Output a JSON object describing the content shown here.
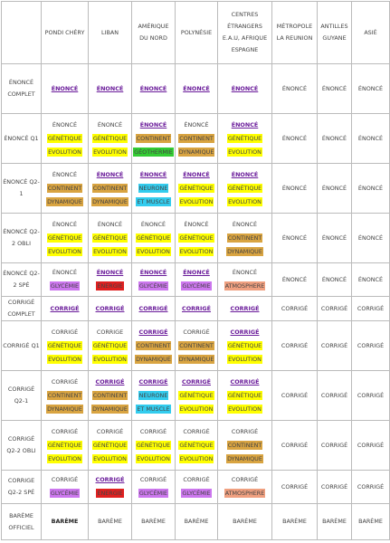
{
  "table": {
    "header": [
      "PONDI CHÉRY",
      "LIBAN",
      "AMÉRIQUE DU NORD",
      "POLYNÉSIE",
      "CENTRES ÉTRANGERS E.A.U, AFRIQUE ESPAGNE",
      "MÉTROPOLE LA REUNION",
      "ANTILLES GUYANE",
      "ASIÉ"
    ],
    "rows": [
      {
        "label": "ÉNONCÉ COMPLET",
        "cells": [
          [
            {
              "text": "ÉNONCÉ",
              "link": true
            }
          ],
          [
            {
              "text": "ÉNONCÉ",
              "link": true
            }
          ],
          [
            {
              "text": "ÉNONCÉ",
              "link": true
            }
          ],
          [
            {
              "text": "ÉNONCÉ",
              "link": true
            }
          ],
          [
            {
              "text": "ÉNONCÉ",
              "link": true
            }
          ],
          [
            {
              "text": "ÉNONCÉ"
            }
          ],
          [
            {
              "text": "ÉNONCÉ"
            }
          ],
          [
            {
              "text": "ÉNONCÉ"
            }
          ]
        ]
      },
      {
        "label": "ÉNONCÉ Q1",
        "cells": [
          [
            {
              "text": "ÉNONCÉ"
            },
            {
              "text": "GÉNÉTIQUE",
              "bg": "#ffff00"
            },
            {
              "text": "EVOLUTION",
              "bg": "#ffff00"
            }
          ],
          [
            {
              "text": "ÉNONCÉ"
            },
            {
              "text": "GÉNÉTIQUE",
              "bg": "#ffff00"
            },
            {
              "text": "EVOLUTION",
              "bg": "#ffff00"
            }
          ],
          [
            {
              "text": "ÉNONCÉ",
              "link": true
            },
            {
              "text": "CONTINENT",
              "bg": "#d9a441"
            },
            {
              "text": "GÉOTHERMIE",
              "bg": "#33cc33"
            }
          ],
          [
            {
              "text": "ÉNONCÉ"
            },
            {
              "text": "CONTINENT",
              "bg": "#d9a441"
            },
            {
              "text": "DYNAMIQUE",
              "bg": "#d9a441"
            }
          ],
          [
            {
              "text": "ÉNONCÉ",
              "link": true
            },
            {
              "text": "GÉNÉTIQUE",
              "bg": "#ffff00"
            },
            {
              "text": "EVOLUTION",
              "bg": "#ffff00"
            }
          ],
          [
            {
              "text": "ÉNONCÉ"
            }
          ],
          [
            {
              "text": "ÉNONCÉ"
            }
          ],
          [
            {
              "text": "ÉNONCÉ"
            }
          ]
        ]
      },
      {
        "label": "ÉNONCÉ Q2-1",
        "cells": [
          [
            {
              "text": "ÉNONCÉ"
            },
            {
              "text": "CONTINENT",
              "bg": "#d9a441"
            },
            {
              "text": "DYNAMIQUE",
              "bg": "#d9a441"
            }
          ],
          [
            {
              "text": "ÉNONCÉ",
              "link": true
            },
            {
              "text": "CONTINENT",
              "bg": "#d9a441"
            },
            {
              "text": "DYNAMIQUE",
              "bg": "#d9a441"
            }
          ],
          [
            {
              "text": "ÉNONCÉ",
              "link": true
            },
            {
              "text": "NEURONE",
              "bg": "#33ccee"
            },
            {
              "text": "ET MUSCLE",
              "bg": "#33ccee"
            }
          ],
          [
            {
              "text": "ÉNONCÉ",
              "link": true
            },
            {
              "text": "GÉNÉTIQUE",
              "bg": "#ffff00"
            },
            {
              "text": "EVOLUTION",
              "bg": "#ffff00"
            }
          ],
          [
            {
              "text": "ÉNONCÉ",
              "link": true
            },
            {
              "text": "GÉNÉTIQUE",
              "bg": "#ffff00"
            },
            {
              "text": "EVOLUTION",
              "bg": "#ffff00"
            }
          ],
          [
            {
              "text": "ÉNONCÉ"
            }
          ],
          [
            {
              "text": "ÉNONCÉ"
            }
          ],
          [
            {
              "text": "ÉNONCÉ"
            }
          ]
        ]
      },
      {
        "label": "ÉNONCÉ Q2-2 OBLI",
        "cells": [
          [
            {
              "text": "ÉNONCÉ"
            },
            {
              "text": "GÉNÉTIQUE",
              "bg": "#ffff00"
            },
            {
              "text": "EVOLUTION",
              "bg": "#ffff00"
            }
          ],
          [
            {
              "text": "ÉNONCÉ"
            },
            {
              "text": "GÉNÉTIQUE",
              "bg": "#ffff00"
            },
            {
              "text": "EVOLUTION",
              "bg": "#ffff00"
            }
          ],
          [
            {
              "text": "ÉNONCÉ"
            },
            {
              "text": "GÉNÉTIQUE",
              "bg": "#ffff00"
            },
            {
              "text": "EVOLUTION",
              "bg": "#ffff00"
            }
          ],
          [
            {
              "text": "ÉNONCÉ"
            },
            {
              "text": "GÉNÉTIQUE",
              "bg": "#ffff00"
            },
            {
              "text": "EVOLUTION",
              "bg": "#ffff00"
            }
          ],
          [
            {
              "text": "ÉNONCÉ"
            },
            {
              "text": "CONTINENT",
              "bg": "#d9a441"
            },
            {
              "text": "DYNAMIQUE",
              "bg": "#d9a441"
            }
          ],
          [
            {
              "text": "ÉNONCÉ"
            }
          ],
          [
            {
              "text": "ÉNONCÉ"
            }
          ],
          [
            {
              "text": "ÉNONCÉ"
            }
          ]
        ]
      },
      {
        "label": "ÉNONCÉ Q2-2 SPÉ",
        "cells": [
          [
            {
              "text": "ÉNONCÉ"
            },
            {
              "text": "GLYCÉMIE",
              "bg": "#cc77ee"
            }
          ],
          [
            {
              "text": "ÉNONCÉ",
              "link": true
            },
            {
              "text": "ÉNERGIE",
              "bg": "#e02020"
            }
          ],
          [
            {
              "text": "ÉNONCÉ",
              "link": true
            },
            {
              "text": "GLYCÉMIE",
              "bg": "#cc77ee"
            }
          ],
          [
            {
              "text": "ÉNONCÉ",
              "link": true
            },
            {
              "text": "GLYCÉMIE",
              "bg": "#cc77ee"
            }
          ],
          [
            {
              "text": "ÉNONCÉ"
            },
            {
              "text": "ATMOSPHERE",
              "bg": "#f0a080"
            }
          ],
          [
            {
              "text": "ÉNONCÉ"
            }
          ],
          [
            {
              "text": "ÉNONCÉ"
            }
          ],
          [
            {
              "text": "ÉNONCÉ"
            }
          ]
        ]
      },
      {
        "label": "CORRIGÉ COMPLET",
        "cells": [
          [
            {
              "text": "CORRIGÉ",
              "link": true
            }
          ],
          [
            {
              "text": "CORRIGÉ",
              "link": true
            }
          ],
          [
            {
              "text": "CORRIGÉ",
              "link": true
            }
          ],
          [
            {
              "text": "CORRIGÉ",
              "link": true
            }
          ],
          [
            {
              "text": "CORRIGÉ",
              "link": true
            }
          ],
          [
            {
              "text": "CORRIGÉ"
            }
          ],
          [
            {
              "text": "CORRIGÉ"
            }
          ],
          [
            {
              "text": "CORRIGÉ"
            }
          ]
        ]
      },
      {
        "label": "CORRIGÉ Q1",
        "cells": [
          [
            {
              "text": "CORRIGÉ"
            },
            {
              "text": "GÉNÉTIQUE",
              "bg": "#ffff00"
            },
            {
              "text": "EVOLUTION",
              "bg": "#ffff00"
            }
          ],
          [
            {
              "text": "CORRIGE"
            },
            {
              "text": "GÉNÉTIQUE",
              "bg": "#ffff00"
            },
            {
              "text": "EVOLUTION",
              "bg": "#ffff00"
            }
          ],
          [
            {
              "text": "CORRIGÉ",
              "link": true
            },
            {
              "text": "CONTINENT",
              "bg": "#d9a441"
            },
            {
              "text": "DYNAMIQUE",
              "bg": "#d9a441"
            }
          ],
          [
            {
              "text": "CORRIGÉ"
            },
            {
              "text": "CONTINENT",
              "bg": "#d9a441"
            },
            {
              "text": "DYNAMIQUE",
              "bg": "#d9a441"
            }
          ],
          [
            {
              "text": "CORRIGÉ",
              "link": true
            },
            {
              "text": "GÉNÉTIQUE",
              "bg": "#ffff00"
            },
            {
              "text": "EVOLUTION",
              "bg": "#ffff00"
            }
          ],
          [
            {
              "text": "CORRIGÉ"
            }
          ],
          [
            {
              "text": "CORRIGÉ"
            }
          ],
          [
            {
              "text": "CORRIGÉ"
            }
          ]
        ]
      },
      {
        "label": "CORRIGÉ Q2-1",
        "cells": [
          [
            {
              "text": "CORRIGÉ"
            },
            {
              "text": "CONTINENT",
              "bg": "#d9a441"
            },
            {
              "text": "DYNAMIQUE",
              "bg": "#d9a441"
            }
          ],
          [
            {
              "text": "CORRIGÉ",
              "link": true
            },
            {
              "text": "CONTINENT",
              "bg": "#d9a441"
            },
            {
              "text": "DYNAMIQUE",
              "bg": "#d9a441"
            }
          ],
          [
            {
              "text": "CORRIGÉ",
              "link": true
            },
            {
              "text": "NEURONE",
              "bg": "#33ccee"
            },
            {
              "text": "ET MUSCLE",
              "bg": "#33ccee"
            }
          ],
          [
            {
              "text": "CORRIGÉ",
              "link": true
            },
            {
              "text": "GÉNÉTIQUE",
              "bg": "#ffff00"
            },
            {
              "text": "EVOLUTION",
              "bg": "#ffff00"
            }
          ],
          [
            {
              "text": "CORRIGÉ",
              "link": true
            },
            {
              "text": "GÉNÉTIQUE",
              "bg": "#ffff00"
            },
            {
              "text": "EVOLUTION",
              "bg": "#ffff00"
            }
          ],
          [
            {
              "text": "CORRIGÉ"
            }
          ],
          [
            {
              "text": "CORRIGÉ"
            }
          ],
          [
            {
              "text": "CORRIGÉ"
            }
          ]
        ]
      },
      {
        "label": "CORRIGÉ Q2-2 OBLI",
        "cells": [
          [
            {
              "text": "CORRIGÉ"
            },
            {
              "text": "GÉNÉTIQUE",
              "bg": "#ffff00"
            },
            {
              "text": "EVOLUTION",
              "bg": "#ffff00"
            }
          ],
          [
            {
              "text": "CORRIGÉ"
            },
            {
              "text": "GÉNÉTIQUE",
              "bg": "#ffff00"
            },
            {
              "text": "EVOLUTION",
              "bg": "#ffff00"
            }
          ],
          [
            {
              "text": "CORRIGÉ"
            },
            {
              "text": "GÉNÉTIQUE",
              "bg": "#ffff00"
            },
            {
              "text": "EVOLUTION",
              "bg": "#ffff00"
            }
          ],
          [
            {
              "text": "CORRIGÉ"
            },
            {
              "text": "GÉNÉTIQUE",
              "bg": "#ffff00"
            },
            {
              "text": "EVOLUTION",
              "bg": "#ffff00"
            }
          ],
          [
            {
              "text": "CORRIGÉ"
            },
            {
              "text": "CONTINENT",
              "bg": "#d9a441"
            },
            {
              "text": "DYNAMIQUE",
              "bg": "#d9a441"
            }
          ],
          [
            {
              "text": "CORRIGÉ"
            }
          ],
          [
            {
              "text": "CORRIGÉ"
            }
          ],
          [
            {
              "text": "CORRIGÉ"
            }
          ]
        ]
      },
      {
        "label": "CORRIGE Q2-2 SPÉ",
        "cells": [
          [
            {
              "text": "CORRIGÉ"
            },
            {
              "text": "GLYCÉMIE",
              "bg": "#cc77ee"
            }
          ],
          [
            {
              "text": "CORRIGÉ",
              "link": true
            },
            {
              "text": "ÉNERGIE",
              "bg": "#e02020"
            }
          ],
          [
            {
              "text": "CORRIGÉ"
            },
            {
              "text": "GLYCÉMIE",
              "bg": "#cc77ee"
            }
          ],
          [
            {
              "text": "CORRIGÉ"
            },
            {
              "text": "GLYCÉMIE",
              "bg": "#cc77ee"
            }
          ],
          [
            {
              "text": "CORRIGÉ"
            },
            {
              "text": "ATMOSPHERE",
              "bg": "#f0a080"
            }
          ],
          [
            {
              "text": "CORRIGÉ"
            }
          ],
          [
            {
              "text": "CORRIGÉ"
            }
          ],
          [
            {
              "text": "CORRIGÉ"
            }
          ]
        ]
      },
      {
        "label": "BARÈME OFFICIEL",
        "cells": [
          [
            {
              "text": "BARÈME",
              "bold": true
            }
          ],
          [
            {
              "text": "BARÈME"
            }
          ],
          [
            {
              "text": "BARÈME"
            }
          ],
          [
            {
              "text": "BARÈME"
            }
          ],
          [
            {
              "text": "BARÈME"
            }
          ],
          [
            {
              "text": "BARÈME"
            }
          ],
          [
            {
              "text": "BARÈME"
            }
          ],
          [
            {
              "text": "BARÈME"
            }
          ]
        ]
      }
    ]
  }
}
